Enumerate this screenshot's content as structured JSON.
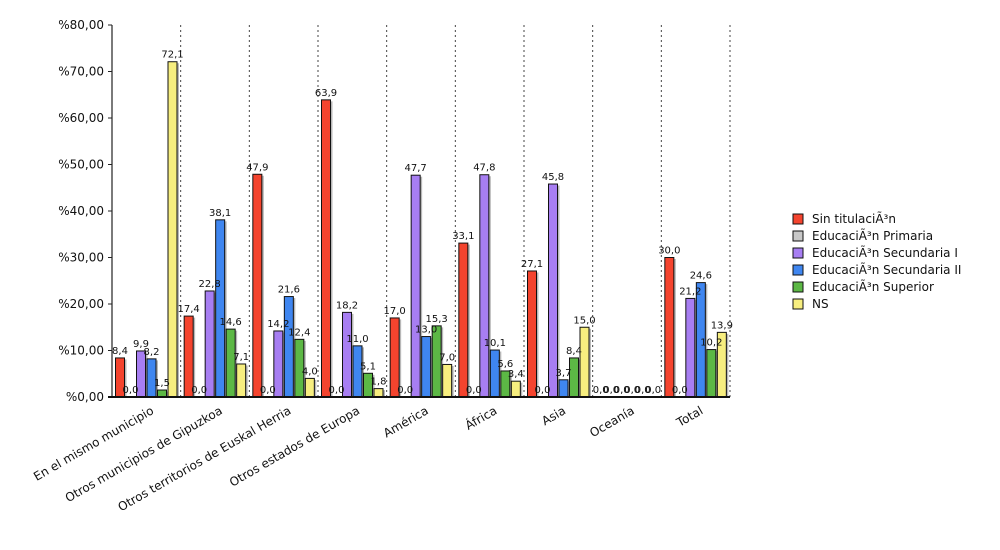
{
  "chart_data": {
    "type": "bar",
    "title": "",
    "xlabel": "",
    "ylabel": "",
    "ylim": [
      0,
      80
    ],
    "yticks": [
      "%0,00",
      "%10,00",
      "%20,00",
      "%30,00",
      "%40,00",
      "%50,00",
      "%60,00",
      "%70,00",
      "%80,00"
    ],
    "grid": "vertical-dotted",
    "legend_position": "right",
    "categories": [
      "En el mismo municipio",
      "Otros municipios de Gipuzkoa",
      "Otros territorios de Euskal Herria",
      "Otros estados de Europa",
      "América",
      "África",
      "Asia",
      "Oceanía",
      "Total"
    ],
    "series": [
      {
        "name": "Sin titulaciÃ³n",
        "color": "#f4442e",
        "values": [
          8.4,
          17.4,
          47.9,
          63.9,
          17.0,
          33.1,
          27.1,
          0.0,
          30.0
        ],
        "labels": [
          "8,4",
          "17,4",
          "47,9",
          "63,9",
          "17,0",
          "33,1",
          "27,1",
          "0,0",
          "30,0"
        ]
      },
      {
        "name": "EducaciÃ³n Primaria",
        "color": "#c8c8c8",
        "values": [
          0.0,
          0.0,
          0.0,
          0.0,
          0.0,
          0.0,
          0.0,
          0.0,
          0.0
        ],
        "labels": [
          "0,0",
          "0,0",
          "0,0",
          "0,0",
          "0,0",
          "0,0",
          "0,0",
          "0,0",
          "0,0"
        ]
      },
      {
        "name": "EducaciÃ³n Secundaria I",
        "color": "#a77ef2",
        "values": [
          9.9,
          22.8,
          14.2,
          18.2,
          47.7,
          47.8,
          45.8,
          0.0,
          21.2
        ],
        "labels": [
          "9,9",
          "22,8",
          "14,2",
          "18,2",
          "47,7",
          "47,8",
          "45,8",
          "0,0",
          "21,2"
        ]
      },
      {
        "name": "EducaciÃ³n Secundaria II",
        "color": "#3f86f0",
        "values": [
          8.2,
          38.1,
          21.6,
          11.0,
          13.0,
          10.1,
          3.7,
          0.0,
          24.6
        ],
        "labels": [
          "8,2",
          "38,1",
          "21,6",
          "11,0",
          "13,0",
          "10,1",
          "3,7",
          "0,0",
          "24,6"
        ]
      },
      {
        "name": "EducaciÃ³n Superior",
        "color": "#5cb845",
        "values": [
          1.5,
          14.6,
          12.4,
          5.1,
          15.3,
          5.6,
          8.4,
          0.0,
          10.2
        ],
        "labels": [
          "1,5",
          "14,6",
          "12,4",
          "5,1",
          "15,3",
          "5,6",
          "8,4",
          "0,0",
          "10,2"
        ]
      },
      {
        "name": "NS",
        "color": "#f7ee7f",
        "values": [
          72.1,
          7.1,
          4.0,
          1.8,
          7.0,
          3.4,
          15.0,
          0.0,
          13.9
        ],
        "labels": [
          "72,1",
          "7,1",
          "4,0",
          "1,8",
          "7,0",
          "3,4",
          "15,0",
          "0,0",
          "13,9"
        ]
      }
    ]
  }
}
